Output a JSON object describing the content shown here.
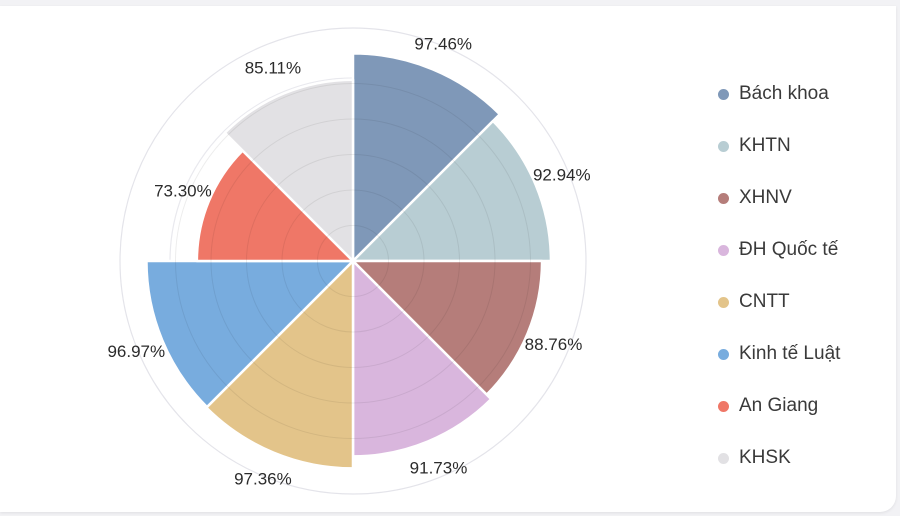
{
  "chart_data": {
    "type": "polar-area",
    "rmax": 100,
    "grid": true,
    "legend_position": "right",
    "categories": [
      "Bách khoa",
      "KHTN",
      "XHNV",
      "ĐH Quốc tế",
      "CNTT",
      "Kinh tế Luật",
      "An Giang",
      "KHSK"
    ],
    "values": [
      97.46,
      92.94,
      88.76,
      91.73,
      97.36,
      96.97,
      73.3,
      85.11
    ],
    "labels": [
      "97.46%",
      "92.94%",
      "88.76%",
      "91.73%",
      "97.36%",
      "96.97%",
      "73.30%",
      "85.11%"
    ],
    "colors": [
      "#7f98b8",
      "#b8cdd3",
      "#b57d7a",
      "#d9b6dd",
      "#e3c48a",
      "#78acde",
      "#ef7767",
      "#e2e1e4"
    ]
  }
}
